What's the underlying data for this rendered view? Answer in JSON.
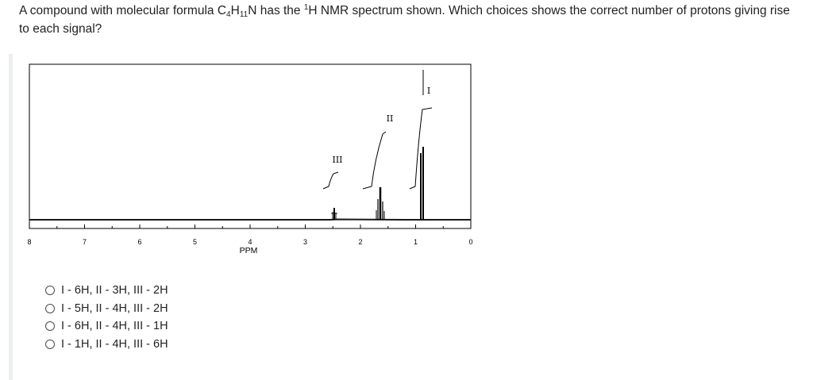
{
  "question": {
    "text_before": "A compound with molecular formula C",
    "sub_c": "4",
    "text_h": "H",
    "sub_h": "11",
    "text_n": "N has the ",
    "sup_1": "1",
    "text_after": "H NMR spectrum shown. Which choices shows the correct number of protons giving rise to each signal?"
  },
  "spectrum": {
    "xlabel": "PPM",
    "ticks": [
      "8",
      "7",
      "6",
      "5",
      "4",
      "3",
      "2",
      "1",
      "0"
    ],
    "signal_labels": [
      "I",
      "II",
      "III"
    ]
  },
  "chart_data": {
    "type": "line",
    "xlabel": "PPM",
    "xlim": [
      8,
      0
    ],
    "peaks": [
      {
        "label": "I",
        "ppm": 0.95
      },
      {
        "label": "II",
        "ppm": 1.45
      },
      {
        "label": "III",
        "ppm": 2.45
      }
    ]
  },
  "options": [
    {
      "label": "I - 6H, II - 3H, III - 2H"
    },
    {
      "label": "I - 5H, II - 4H, III - 2H"
    },
    {
      "label": "I - 6H, II - 4H, III - 1H"
    },
    {
      "label": "I - 1H, II - 4H, III - 6H"
    }
  ]
}
